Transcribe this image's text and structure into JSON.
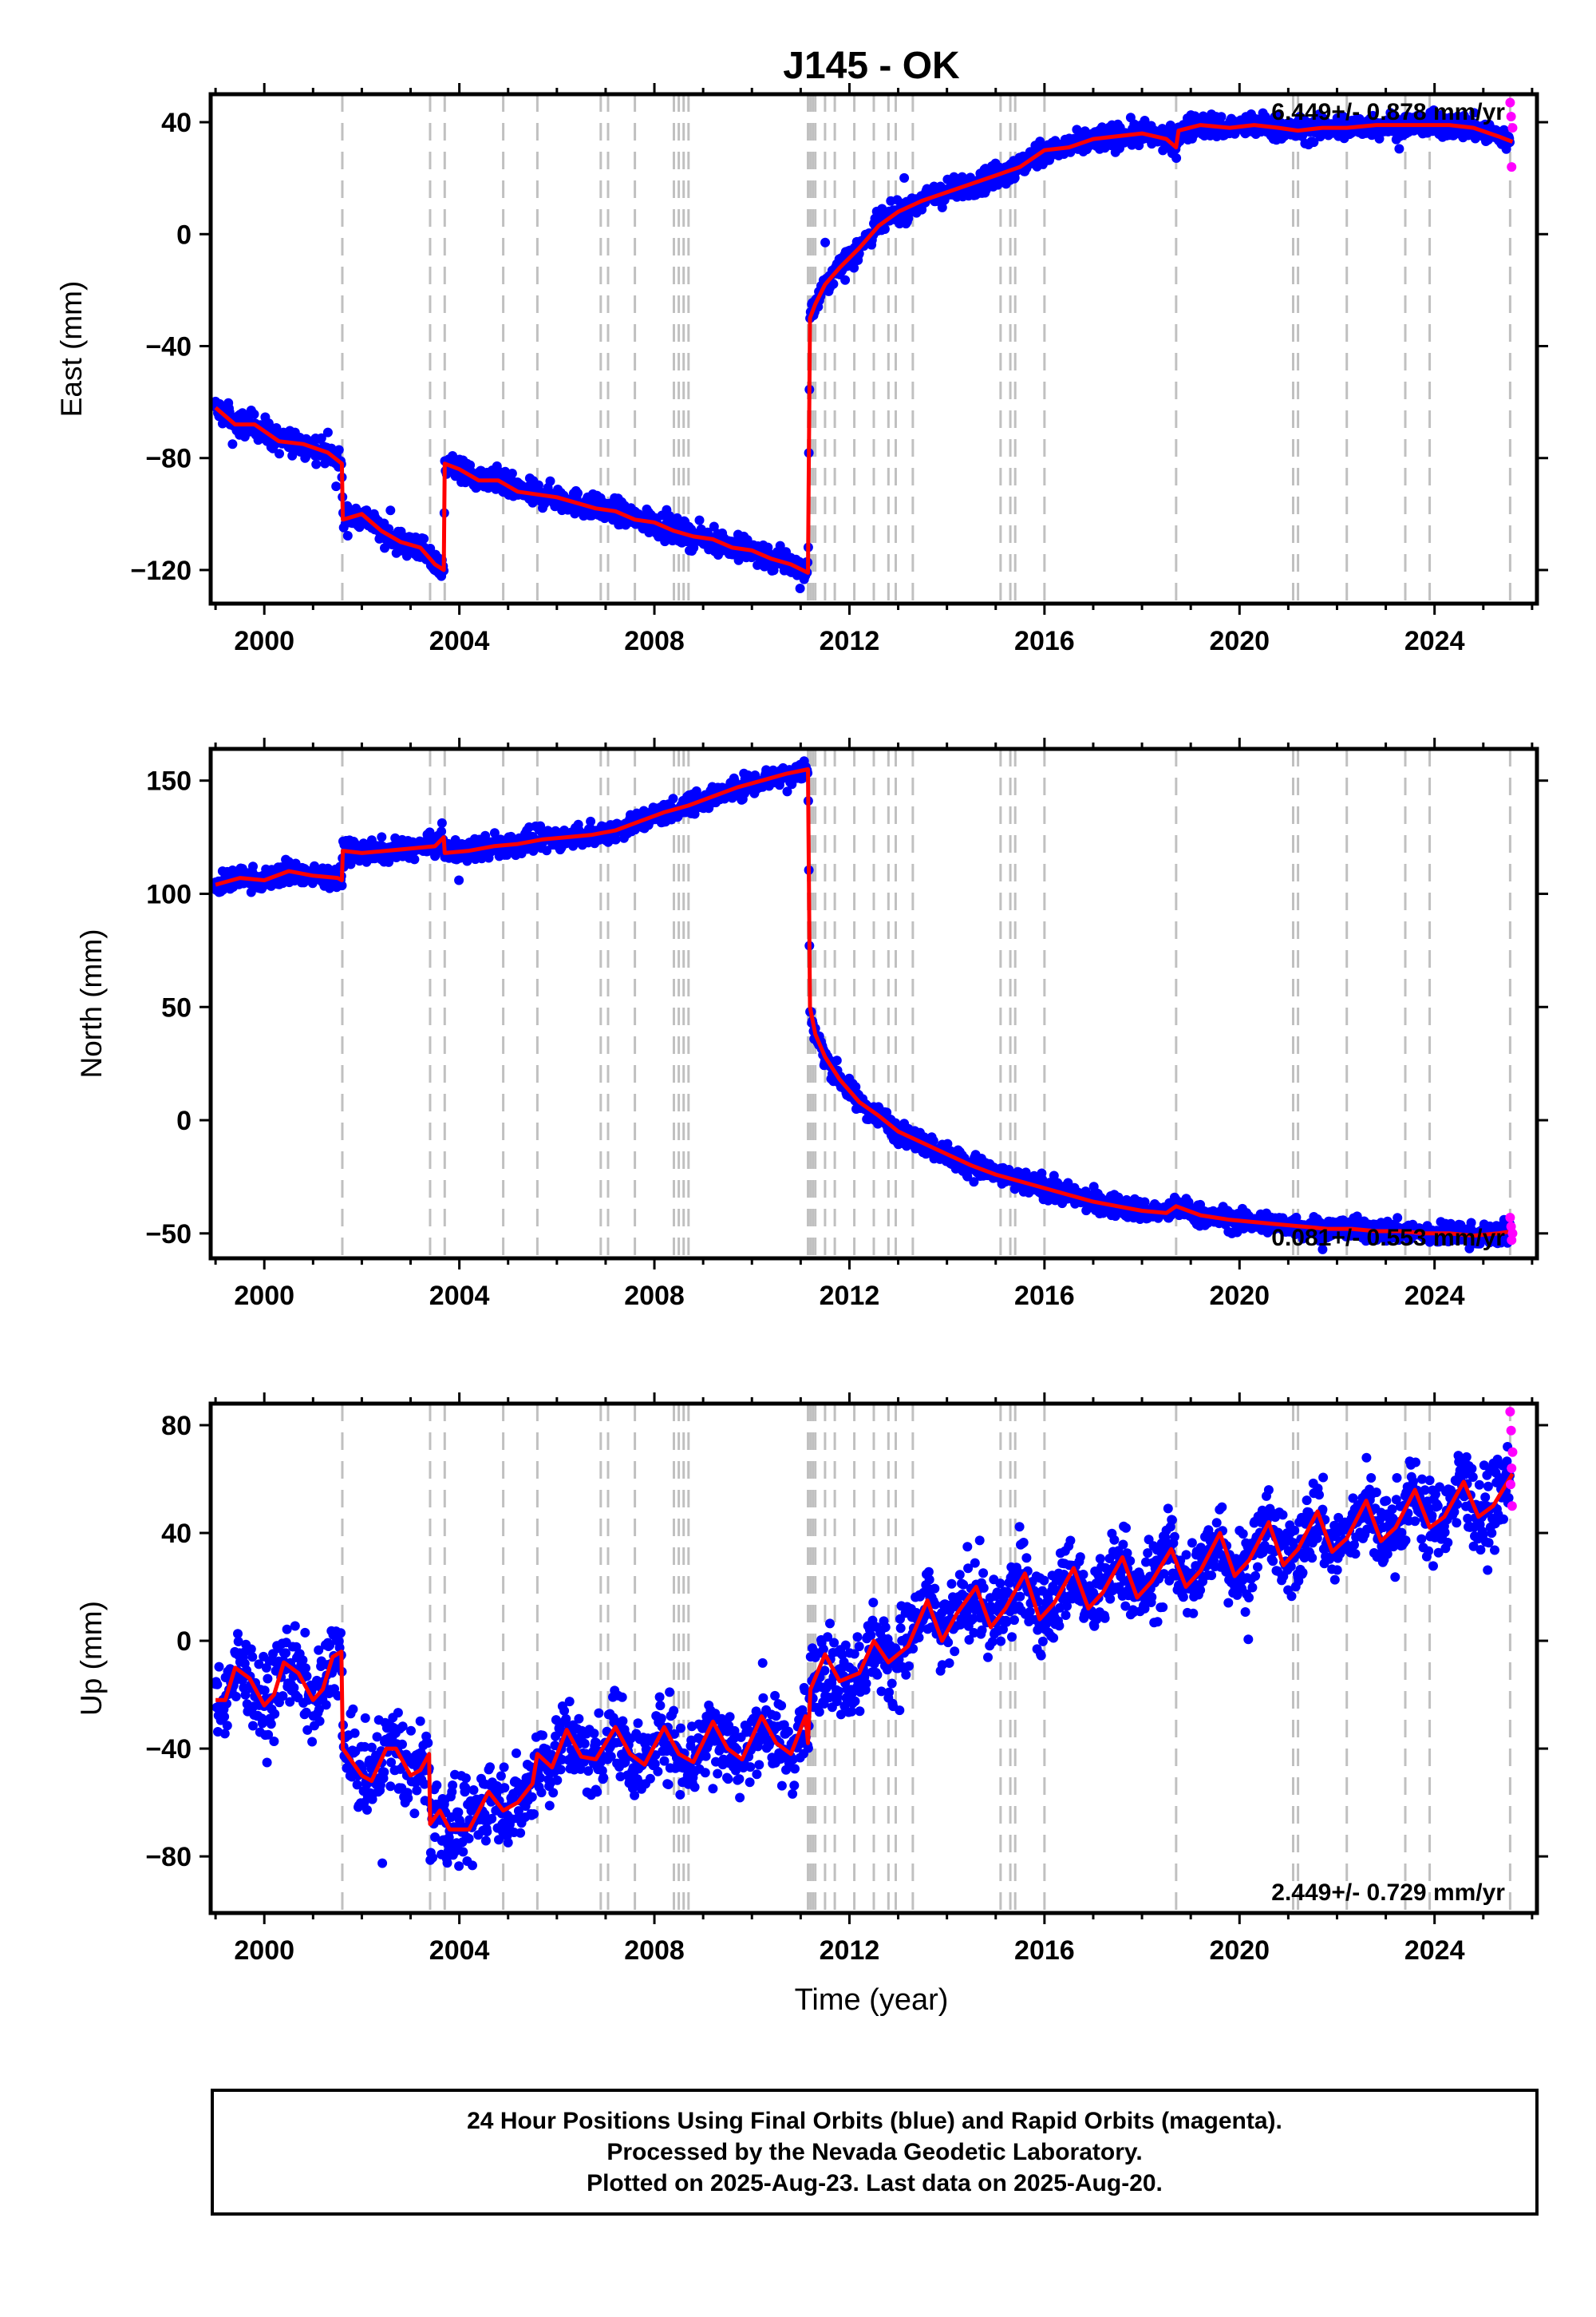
{
  "title": "J145 - OK",
  "x_axis_label": "Time (year)",
  "x_tick_labels": [
    "2000",
    "2004",
    "2008",
    "2012",
    "2016",
    "2020",
    "2024"
  ],
  "footer": {
    "line1": "24 Hour Positions Using Final Orbits (blue) and Rapid Orbits (magenta).",
    "line2": "Processed by the Nevada Geodetic Laboratory.",
    "line3": "Plotted on 2025-Aug-23. Last data on 2025-Aug-20."
  },
  "colors": {
    "final_orbits": "#0000ff",
    "rapid_orbits": "#ff00ff",
    "model": "#ff0000",
    "event_lines": "#c0c0c0"
  },
  "chart_data": [
    {
      "type": "scatter",
      "component": "east",
      "ylabel": "East (mm)",
      "rate_label": "6.449+/- 0.878 mm/yr",
      "xlim": [
        1998.9,
        2026.1
      ],
      "ylim": [
        -132,
        50
      ],
      "yticks": [
        -120,
        -80,
        -40,
        0,
        40
      ],
      "ytick_labels": [
        "−120",
        "−80",
        "−40",
        "0",
        "40"
      ],
      "event_lines": [
        2001.6,
        2003.4,
        2003.7,
        2004.9,
        2005.6,
        2006.9,
        2007.05,
        2007.6,
        2008.4,
        2008.5,
        2008.6,
        2008.7,
        2011.15,
        2011.2,
        2011.25,
        2011.3,
        2011.5,
        2011.7,
        2012.1,
        2012.5,
        2012.8,
        2012.95,
        2013.3,
        2015.1,
        2015.3,
        2015.4,
        2016.0,
        2018.7,
        2021.1,
        2021.2,
        2022.2,
        2023.4,
        2023.9,
        2025.55
      ],
      "model_series": [
        [
          1999.0,
          -62
        ],
        [
          1999.4,
          -68
        ],
        [
          1999.8,
          -68
        ],
        [
          2000.3,
          -74
        ],
        [
          2000.8,
          -75
        ],
        [
          2001.3,
          -78
        ],
        [
          2001.59,
          -82
        ],
        [
          2001.61,
          -102
        ],
        [
          2002.0,
          -100
        ],
        [
          2002.4,
          -106
        ],
        [
          2002.8,
          -110
        ],
        [
          2003.2,
          -112
        ],
        [
          2003.5,
          -118
        ],
        [
          2003.68,
          -120
        ],
        [
          2003.7,
          -82
        ],
        [
          2004.0,
          -84
        ],
        [
          2004.4,
          -88
        ],
        [
          2004.8,
          -88
        ],
        [
          2005.2,
          -92
        ],
        [
          2005.6,
          -93
        ],
        [
          2006.0,
          -94
        ],
        [
          2006.4,
          -96
        ],
        [
          2006.8,
          -98
        ],
        [
          2007.2,
          -99
        ],
        [
          2007.6,
          -102
        ],
        [
          2008.0,
          -103
        ],
        [
          2008.4,
          -106
        ],
        [
          2008.8,
          -108
        ],
        [
          2009.2,
          -109
        ],
        [
          2009.6,
          -112
        ],
        [
          2010.0,
          -113
        ],
        [
          2010.4,
          -116
        ],
        [
          2010.8,
          -118
        ],
        [
          2011.15,
          -121
        ],
        [
          2011.19,
          -30
        ],
        [
          2011.3,
          -25
        ],
        [
          2011.5,
          -18
        ],
        [
          2011.8,
          -12
        ],
        [
          2012.2,
          -5
        ],
        [
          2012.6,
          3
        ],
        [
          2013.0,
          8
        ],
        [
          2013.5,
          12
        ],
        [
          2014.0,
          15
        ],
        [
          2014.5,
          18
        ],
        [
          2015.0,
          21
        ],
        [
          2015.5,
          24
        ],
        [
          2016.0,
          30
        ],
        [
          2016.5,
          31
        ],
        [
          2017.0,
          34
        ],
        [
          2017.5,
          35
        ],
        [
          2018.0,
          36
        ],
        [
          2018.5,
          34
        ],
        [
          2018.7,
          31
        ],
        [
          2018.75,
          37
        ],
        [
          2019.2,
          39
        ],
        [
          2019.8,
          38
        ],
        [
          2020.3,
          39
        ],
        [
          2020.8,
          38
        ],
        [
          2021.2,
          37
        ],
        [
          2021.7,
          38
        ],
        [
          2022.2,
          38
        ],
        [
          2022.8,
          39
        ],
        [
          2023.3,
          39
        ],
        [
          2023.8,
          39
        ],
        [
          2024.3,
          39
        ],
        [
          2024.8,
          38
        ],
        [
          2025.3,
          35
        ],
        [
          2025.6,
          33
        ]
      ],
      "rapid_points": [
        [
          2025.55,
          47
        ],
        [
          2025.57,
          42
        ],
        [
          2025.6,
          38
        ],
        [
          2025.58,
          24
        ]
      ]
    },
    {
      "type": "scatter",
      "component": "north",
      "ylabel": "North (mm)",
      "rate_label": "0.081+/- 0.553 mm/yr",
      "xlim": [
        1998.9,
        2026.1
      ],
      "ylim": [
        -61,
        164
      ],
      "yticks": [
        -50,
        0,
        50,
        100,
        150
      ],
      "ytick_labels": [
        "−50",
        "0",
        "50",
        "100",
        "150"
      ],
      "event_lines": [
        2001.6,
        2003.4,
        2003.7,
        2004.9,
        2005.6,
        2006.9,
        2007.05,
        2007.6,
        2008.4,
        2008.5,
        2008.6,
        2008.7,
        2011.15,
        2011.2,
        2011.25,
        2011.3,
        2011.5,
        2011.7,
        2012.1,
        2012.5,
        2012.8,
        2012.95,
        2013.3,
        2015.1,
        2015.3,
        2015.4,
        2016.0,
        2018.7,
        2021.1,
        2021.2,
        2022.2,
        2023.4,
        2023.9,
        2025.55
      ],
      "model_series": [
        [
          1999.0,
          104
        ],
        [
          1999.5,
          107
        ],
        [
          2000.0,
          106
        ],
        [
          2000.5,
          110
        ],
        [
          2001.0,
          108
        ],
        [
          2001.5,
          107
        ],
        [
          2001.59,
          106
        ],
        [
          2001.61,
          119
        ],
        [
          2002.0,
          118
        ],
        [
          2002.5,
          119
        ],
        [
          2003.0,
          120
        ],
        [
          2003.5,
          121
        ],
        [
          2003.68,
          125
        ],
        [
          2003.7,
          118
        ],
        [
          2004.2,
          119
        ],
        [
          2004.7,
          121
        ],
        [
          2005.2,
          122
        ],
        [
          2005.7,
          124
        ],
        [
          2006.2,
          125
        ],
        [
          2006.7,
          126
        ],
        [
          2007.2,
          128
        ],
        [
          2007.7,
          132
        ],
        [
          2008.2,
          136
        ],
        [
          2008.7,
          139
        ],
        [
          2009.2,
          143
        ],
        [
          2009.7,
          147
        ],
        [
          2010.2,
          150
        ],
        [
          2010.7,
          153
        ],
        [
          2011.15,
          155
        ],
        [
          2011.19,
          50
        ],
        [
          2011.3,
          38
        ],
        [
          2011.5,
          28
        ],
        [
          2011.8,
          18
        ],
        [
          2012.2,
          8
        ],
        [
          2012.6,
          2
        ],
        [
          2013.0,
          -5
        ],
        [
          2013.5,
          -10
        ],
        [
          2014.0,
          -15
        ],
        [
          2014.5,
          -20
        ],
        [
          2015.0,
          -24
        ],
        [
          2015.5,
          -27
        ],
        [
          2016.0,
          -30
        ],
        [
          2016.5,
          -33
        ],
        [
          2017.0,
          -36
        ],
        [
          2017.5,
          -38
        ],
        [
          2018.0,
          -40
        ],
        [
          2018.5,
          -41
        ],
        [
          2018.7,
          -38
        ],
        [
          2019.2,
          -42
        ],
        [
          2019.8,
          -44
        ],
        [
          2020.3,
          -45
        ],
        [
          2020.8,
          -46
        ],
        [
          2021.3,
          -47
        ],
        [
          2021.8,
          -48
        ],
        [
          2022.3,
          -48
        ],
        [
          2022.8,
          -49
        ],
        [
          2023.3,
          -49
        ],
        [
          2023.8,
          -50
        ],
        [
          2024.3,
          -50
        ],
        [
          2024.8,
          -51
        ],
        [
          2025.3,
          -50
        ],
        [
          2025.6,
          -49
        ]
      ],
      "rapid_points": [
        [
          2025.55,
          -43
        ],
        [
          2025.57,
          -47
        ],
        [
          2025.6,
          -50
        ],
        [
          2025.58,
          -53
        ]
      ]
    },
    {
      "type": "scatter",
      "component": "up",
      "ylabel": "Up (mm)",
      "rate_label": "2.449+/- 0.729 mm/yr",
      "xlim": [
        1998.9,
        2026.1
      ],
      "ylim": [
        -101,
        88
      ],
      "yticks": [
        -80,
        -40,
        0,
        40,
        80
      ],
      "ytick_labels": [
        "−80",
        "−40",
        "0",
        "40",
        "80"
      ],
      "event_lines": [
        2001.6,
        2003.4,
        2003.7,
        2004.9,
        2005.6,
        2006.9,
        2007.05,
        2007.6,
        2008.4,
        2008.5,
        2008.6,
        2008.7,
        2011.15,
        2011.2,
        2011.25,
        2011.3,
        2011.5,
        2011.7,
        2012.1,
        2012.5,
        2012.8,
        2012.95,
        2013.3,
        2015.1,
        2015.3,
        2015.4,
        2016.0,
        2018.7,
        2021.1,
        2021.2,
        2022.2,
        2023.4,
        2023.9,
        2025.55
      ],
      "model_series": [
        [
          1999.0,
          -22
        ],
        [
          1999.2,
          -22
        ],
        [
          1999.4,
          -10
        ],
        [
          1999.7,
          -14
        ],
        [
          2000.0,
          -24
        ],
        [
          2000.2,
          -20
        ],
        [
          2000.4,
          -8
        ],
        [
          2000.7,
          -12
        ],
        [
          2001.0,
          -22
        ],
        [
          2001.2,
          -18
        ],
        [
          2001.4,
          -6
        ],
        [
          2001.58,
          -4
        ],
        [
          2001.61,
          -40
        ],
        [
          2002.0,
          -50
        ],
        [
          2002.2,
          -52
        ],
        [
          2002.5,
          -40
        ],
        [
          2002.7,
          -40
        ],
        [
          2003.0,
          -50
        ],
        [
          2003.2,
          -48
        ],
        [
          2003.38,
          -42
        ],
        [
          2003.4,
          -68
        ],
        [
          2003.6,
          -63
        ],
        [
          2003.8,
          -70
        ],
        [
          2004.2,
          -70
        ],
        [
          2004.6,
          -56
        ],
        [
          2004.9,
          -63
        ],
        [
          2005.2,
          -60
        ],
        [
          2005.5,
          -53
        ],
        [
          2005.6,
          -42
        ],
        [
          2005.9,
          -47
        ],
        [
          2006.2,
          -33
        ],
        [
          2006.5,
          -43
        ],
        [
          2006.8,
          -44
        ],
        [
          2007.2,
          -32
        ],
        [
          2007.5,
          -42
        ],
        [
          2007.8,
          -46
        ],
        [
          2008.2,
          -32
        ],
        [
          2008.5,
          -42
        ],
        [
          2008.8,
          -45
        ],
        [
          2009.2,
          -30
        ],
        [
          2009.5,
          -40
        ],
        [
          2009.8,
          -44
        ],
        [
          2010.2,
          -28
        ],
        [
          2010.5,
          -38
        ],
        [
          2010.8,
          -42
        ],
        [
          2011.1,
          -28
        ],
        [
          2011.15,
          -38
        ],
        [
          2011.2,
          -18
        ],
        [
          2011.5,
          -5
        ],
        [
          2011.8,
          -15
        ],
        [
          2012.2,
          -12
        ],
        [
          2012.5,
          0
        ],
        [
          2012.8,
          -8
        ],
        [
          2013.2,
          -2
        ],
        [
          2013.6,
          15
        ],
        [
          2013.9,
          0
        ],
        [
          2014.2,
          10
        ],
        [
          2014.6,
          20
        ],
        [
          2014.9,
          5
        ],
        [
          2015.2,
          12
        ],
        [
          2015.6,
          25
        ],
        [
          2015.9,
          8
        ],
        [
          2016.2,
          14
        ],
        [
          2016.6,
          27
        ],
        [
          2016.9,
          12
        ],
        [
          2017.2,
          18
        ],
        [
          2017.6,
          31
        ],
        [
          2017.9,
          16
        ],
        [
          2018.2,
          22
        ],
        [
          2018.6,
          34
        ],
        [
          2018.9,
          20
        ],
        [
          2019.2,
          26
        ],
        [
          2019.6,
          40
        ],
        [
          2019.9,
          24
        ],
        [
          2020.2,
          30
        ],
        [
          2020.6,
          44
        ],
        [
          2020.9,
          28
        ],
        [
          2021.2,
          34
        ],
        [
          2021.6,
          48
        ],
        [
          2021.9,
          33
        ],
        [
          2022.2,
          38
        ],
        [
          2022.6,
          52
        ],
        [
          2022.9,
          37
        ],
        [
          2023.2,
          42
        ],
        [
          2023.6,
          56
        ],
        [
          2023.9,
          42
        ],
        [
          2024.2,
          46
        ],
        [
          2024.6,
          59
        ],
        [
          2024.9,
          46
        ],
        [
          2025.2,
          50
        ],
        [
          2025.6,
          62
        ]
      ],
      "rapid_points": [
        [
          2025.55,
          85
        ],
        [
          2025.57,
          78
        ],
        [
          2025.6,
          70
        ],
        [
          2025.58,
          64
        ],
        [
          2025.56,
          58
        ],
        [
          2025.59,
          50
        ]
      ]
    }
  ]
}
